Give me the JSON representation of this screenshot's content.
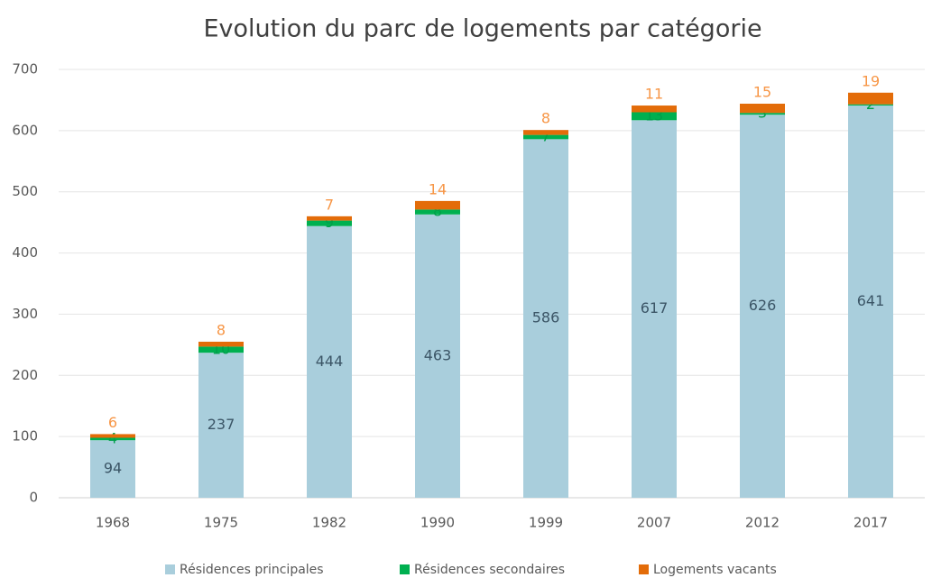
{
  "chart_data": {
    "type": "stacked_bar",
    "title": "Evolution du parc de logements par catégorie",
    "categories": [
      "1968",
      "1975",
      "1982",
      "1990",
      "1999",
      "2007",
      "2012",
      "2017"
    ],
    "series": [
      {
        "name": "Résidences principales",
        "color": "#a9cedc",
        "label_color": "#3b5566",
        "values": [
          94,
          237,
          444,
          463,
          586,
          617,
          626,
          641
        ]
      },
      {
        "name": "Résidences secondaires",
        "color": "#00b050",
        "label_color": "#00a04a",
        "values": [
          4,
          10,
          9,
          8,
          7,
          13,
          3,
          2
        ]
      },
      {
        "name": "Logements vacants",
        "color": "#e36c09",
        "label_color": "#f79646",
        "values": [
          6,
          8,
          7,
          14,
          8,
          11,
          15,
          19
        ]
      }
    ],
    "ylim": [
      0,
      700
    ],
    "yticks": [
      0,
      100,
      200,
      300,
      400,
      500,
      600,
      700
    ],
    "grid": true,
    "legend": "bottom"
  }
}
